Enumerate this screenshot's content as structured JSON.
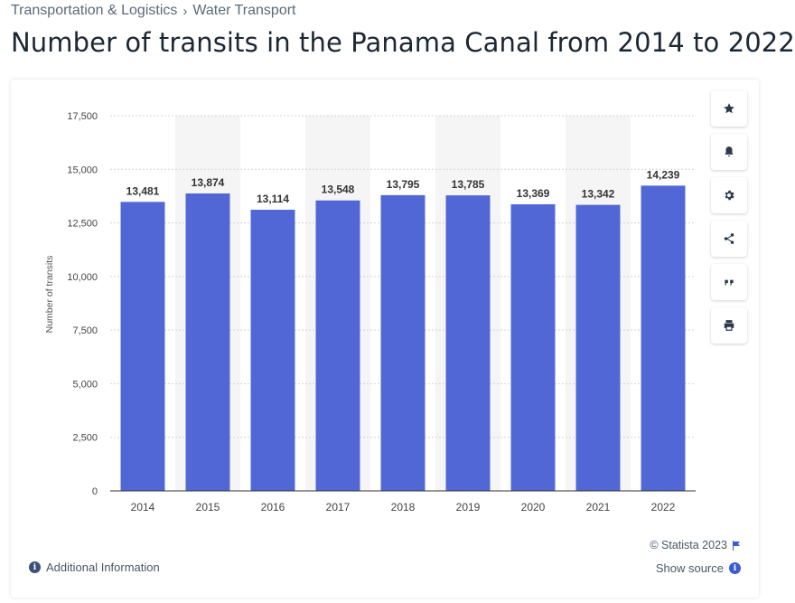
{
  "breadcrumb": {
    "items": [
      "Transportation & Logistics",
      "Water Transport"
    ],
    "separator": "›"
  },
  "page_title": "Number of transits in the Panama Canal from 2014 to 2022",
  "chart_data": {
    "type": "bar",
    "categories": [
      "2014",
      "2015",
      "2016",
      "2017",
      "2018",
      "2019",
      "2020",
      "2021",
      "2022"
    ],
    "values": [
      13481,
      13874,
      13114,
      13548,
      13795,
      13785,
      13369,
      13342,
      14239
    ],
    "data_labels": [
      "13,481",
      "13,874",
      "13,114",
      "13,548",
      "13,795",
      "13,785",
      "13,369",
      "13,342",
      "14,239"
    ],
    "ylabel": "Number of transits",
    "xlabel": "",
    "ylim": [
      0,
      17500
    ],
    "yticks": [
      0,
      2500,
      5000,
      7500,
      10000,
      12500,
      15000,
      17500
    ],
    "ytick_labels": [
      "0",
      "2,500",
      "5,000",
      "7,500",
      "10,000",
      "12,500",
      "15,000",
      "17,500"
    ],
    "bar_color": "#5167d6",
    "grid": true
  },
  "toolbar": {
    "buttons": [
      {
        "name": "favorite",
        "icon": "star-icon"
      },
      {
        "name": "notification",
        "icon": "bell-icon"
      },
      {
        "name": "settings",
        "icon": "gear-icon"
      },
      {
        "name": "share",
        "icon": "share-icon"
      },
      {
        "name": "cite",
        "icon": "quote-icon"
      },
      {
        "name": "print",
        "icon": "print-icon"
      }
    ]
  },
  "footer": {
    "additional_info": "Additional Information",
    "copyright": "© Statista 2023",
    "show_source": "Show source"
  }
}
